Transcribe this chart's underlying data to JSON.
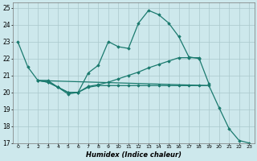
{
  "xlabel": "Humidex (Indice chaleur)",
  "bg_color": "#cde8ec",
  "grid_color": "#aac8cc",
  "line_color": "#1a7a6e",
  "xlim": [
    -0.5,
    23.5
  ],
  "ylim": [
    17,
    25.3
  ],
  "xticks": [
    0,
    1,
    2,
    3,
    4,
    5,
    6,
    7,
    8,
    9,
    10,
    11,
    12,
    13,
    14,
    15,
    16,
    17,
    18,
    19,
    20,
    21,
    22,
    23
  ],
  "yticks": [
    17,
    18,
    19,
    20,
    21,
    22,
    23,
    24,
    25
  ],
  "line1_x": [
    0,
    1,
    2,
    3,
    4,
    5,
    6,
    7,
    8,
    9,
    10,
    11,
    12,
    13,
    14,
    15,
    16,
    17,
    18
  ],
  "line1_y": [
    23.0,
    21.5,
    20.7,
    20.7,
    20.3,
    19.9,
    20.0,
    21.15,
    21.6,
    23.0,
    22.7,
    22.6,
    24.1,
    24.85,
    24.6,
    24.1,
    23.3,
    22.1,
    22.0
  ],
  "line2_x": [
    2,
    3,
    4,
    5,
    6,
    7,
    8,
    9,
    10,
    11,
    12,
    13,
    14,
    15,
    16,
    17,
    18,
    19
  ],
  "line2_y": [
    20.7,
    20.6,
    20.3,
    20.0,
    20.0,
    20.35,
    20.45,
    20.6,
    20.8,
    21.0,
    21.2,
    21.45,
    21.65,
    21.85,
    22.05,
    22.05,
    22.05,
    20.5
  ],
  "line3_x": [
    2,
    3,
    4,
    5,
    6,
    7,
    8,
    9,
    10,
    11,
    12,
    13,
    14,
    15,
    16,
    17,
    18,
    19,
    20,
    21,
    22,
    23
  ],
  "line3_y": [
    20.7,
    20.6,
    20.3,
    20.0,
    20.0,
    20.3,
    20.4,
    20.4,
    20.4,
    20.4,
    20.4,
    20.4,
    20.4,
    20.4,
    20.4,
    20.4,
    20.4,
    20.4,
    19.1,
    17.85,
    17.15,
    17.0
  ],
  "line4_x": [
    2,
    19
  ],
  "line4_y": [
    20.7,
    20.4
  ]
}
